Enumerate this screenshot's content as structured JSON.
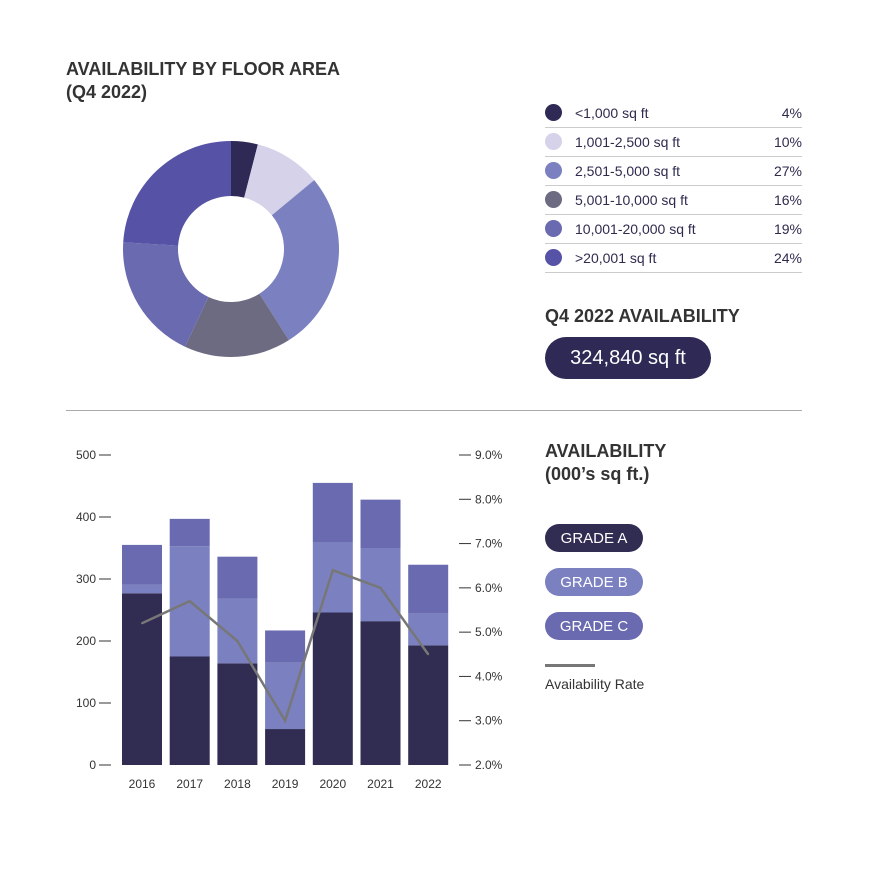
{
  "donut": {
    "title_line1": "AVAILABILITY BY FLOOR AREA",
    "title_line2": "(Q4 2022)"
  },
  "chart_data": [
    {
      "type": "pie",
      "variant": "donut",
      "title": "AVAILABILITY BY FLOOR AREA (Q4 2022)",
      "categories": [
        "<1,000 sq ft",
        "1,001-2,500 sq ft",
        "2,501-5,000 sq ft",
        "5,001-10,000 sq ft",
        "10,001-20,000 sq ft",
        ">20,001 sq ft"
      ],
      "values": [
        4,
        10,
        27,
        16,
        19,
        24
      ],
      "labels": [
        "4%",
        "10%",
        "27%",
        "16%",
        "19%",
        "24%"
      ],
      "colors": [
        "#2e2a55",
        "#d5d2e9",
        "#7b80c0",
        "#6c6b82",
        "#6a6ab0",
        "#5652a6"
      ],
      "legend": "right"
    },
    {
      "type": "bar",
      "stacked": true,
      "title": "AVAILABILITY",
      "subtitle": "(000’s sq ft.)",
      "categories": [
        "2016",
        "2017",
        "2018",
        "2019",
        "2020",
        "2021",
        "2022"
      ],
      "series": [
        {
          "name": "GRADE A",
          "color": "#302c52",
          "values": [
            277,
            175,
            164,
            58,
            246,
            232,
            193
          ]
        },
        {
          "name": "GRADE B",
          "color": "#7b80c0",
          "values": [
            14,
            178,
            104,
            107,
            113,
            118,
            51
          ]
        },
        {
          "name": "GRADE C",
          "color": "#6a6ab0",
          "values": [
            64,
            44,
            68,
            52,
            96,
            78,
            79
          ]
        }
      ],
      "line_series": {
        "name": "Availability Rate",
        "color": "#777777",
        "axis": "right",
        "values": [
          5.2,
          5.7,
          4.8,
          3.0,
          6.4,
          6.0,
          4.5
        ]
      },
      "ylim": [
        0,
        500
      ],
      "yticks": [
        "0",
        "100",
        "200",
        "300",
        "400",
        "500"
      ],
      "y2lim": [
        2.0,
        9.0
      ],
      "y2ticks": [
        "2.0%",
        "3.0%",
        "4.0%",
        "5.0%",
        "6.0%",
        "7.0%",
        "8.0%",
        "9.0%"
      ],
      "grid": false,
      "legend": "right"
    }
  ],
  "availability": {
    "label": "Q4 2022 AVAILABILITY",
    "value": "324,840 sq ft"
  },
  "bar_title": {
    "line1": "AVAILABILITY",
    "line2": "(000’s sq ft.)"
  }
}
